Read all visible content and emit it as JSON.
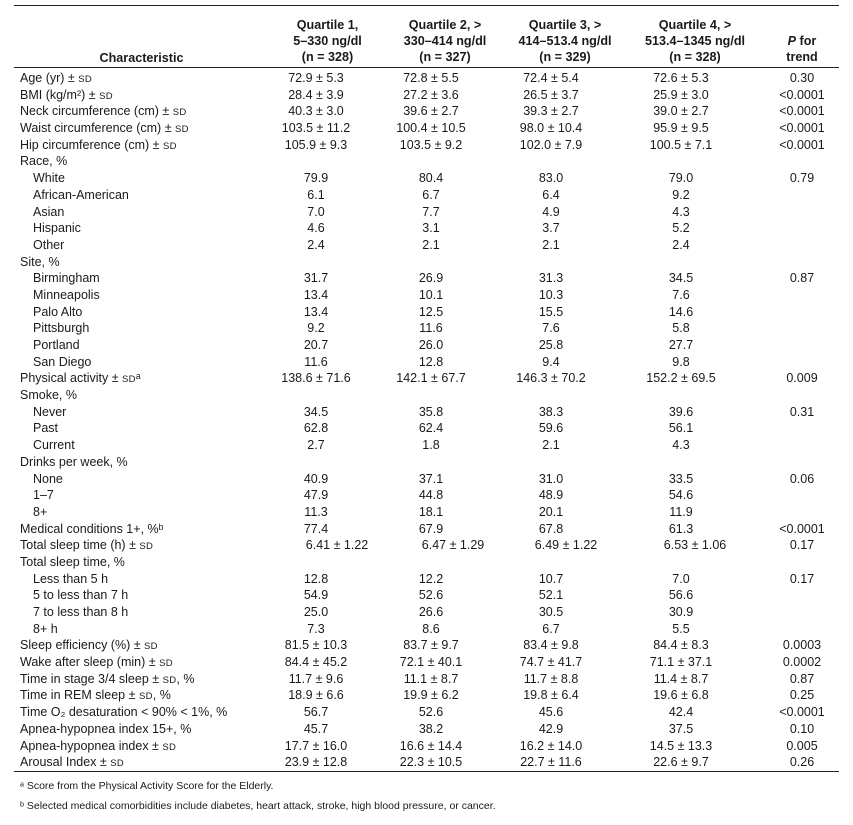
{
  "header": {
    "characteristic": "Characteristic",
    "q1": [
      "Quartile 1,",
      "5–330 ng/dl",
      "(n = 328)"
    ],
    "q2": [
      "Quartile 2, >",
      "330–414 ng/dl",
      "(n = 327)"
    ],
    "q3": [
      "Quartile 3, >",
      "414–513.4 ng/dl",
      "(n = 329)"
    ],
    "q4": [
      "Quartile 4, >",
      "513.4–1345 ng/dl",
      "(n = 328)"
    ],
    "p": [
      "P",
      "for",
      "trend"
    ]
  },
  "rows": [
    {
      "label": "Age (yr) ± SD",
      "v": [
        "72.9 ± 5.3",
        "72.8 ± 5.5",
        "72.4 ± 5.4",
        "72.6 ± 5.3",
        "0.30"
      ]
    },
    {
      "label": "BMI (kg/m²) ± SD",
      "v": [
        "28.4 ± 3.9",
        "27.2 ± 3.6",
        "26.5 ± 3.7",
        "25.9 ± 3.0",
        "<0.0001"
      ]
    },
    {
      "label": "Neck circumference (cm) ± SD",
      "v": [
        "40.3 ± 3.0",
        "39.6 ± 2.7",
        "39.3 ± 2.7",
        "39.0 ± 2.7",
        "<0.0001"
      ]
    },
    {
      "label": "Waist circumference (cm) ± SD",
      "v": [
        "103.5 ± 11.2",
        "100.4 ± 10.5",
        "98.0 ± 10.4",
        "95.9 ± 9.5",
        "<0.0001"
      ]
    },
    {
      "label": "Hip circumference (cm) ± SD",
      "v": [
        "105.9 ± 9.3",
        "103.5 ± 9.2",
        "102.0 ± 7.9",
        "100.5 ± 7.1",
        "<0.0001"
      ]
    },
    {
      "label": "Race, %",
      "v": [
        "",
        "",
        "",
        "",
        ""
      ]
    },
    {
      "label": "White",
      "sub": true,
      "v": [
        "79.9",
        "80.4",
        "83.0",
        "79.0",
        "0.79"
      ]
    },
    {
      "label": "African-American",
      "sub": true,
      "v": [
        "6.1",
        "6.7",
        "6.4",
        "9.2",
        ""
      ]
    },
    {
      "label": "Asian",
      "sub": true,
      "v": [
        "7.0",
        "7.7",
        "4.9",
        "4.3",
        ""
      ]
    },
    {
      "label": "Hispanic",
      "sub": true,
      "v": [
        "4.6",
        "3.1",
        "3.7",
        "5.2",
        ""
      ]
    },
    {
      "label": "Other",
      "sub": true,
      "v": [
        "2.4",
        "2.1",
        "2.1",
        "2.4",
        ""
      ]
    },
    {
      "label": "Site, %",
      "v": [
        "",
        "",
        "",
        "",
        ""
      ]
    },
    {
      "label": "Birmingham",
      "sub": true,
      "v": [
        "31.7",
        "26.9",
        "31.3",
        "34.5",
        "0.87"
      ]
    },
    {
      "label": "Minneapolis",
      "sub": true,
      "v": [
        "13.4",
        "10.1",
        "10.3",
        "7.6",
        ""
      ]
    },
    {
      "label": "Palo Alto",
      "sub": true,
      "v": [
        "13.4",
        "12.5",
        "15.5",
        "14.6",
        ""
      ]
    },
    {
      "label": "Pittsburgh",
      "sub": true,
      "v": [
        "9.2",
        "11.6",
        "7.6",
        "5.8",
        ""
      ]
    },
    {
      "label": "Portland",
      "sub": true,
      "v": [
        "20.7",
        "26.0",
        "25.8",
        "27.7",
        ""
      ]
    },
    {
      "label": "San Diego",
      "sub": true,
      "v": [
        "11.6",
        "12.8",
        "9.4",
        "9.8",
        ""
      ]
    },
    {
      "label": "Physical activity ± SDᵃ",
      "v": [
        "138.6 ± 71.6",
        "142.1 ± 67.7",
        "146.3 ± 70.2",
        "152.2 ± 69.5",
        "0.009"
      ]
    },
    {
      "label": "Smoke, %",
      "v": [
        "",
        "",
        "",
        "",
        ""
      ]
    },
    {
      "label": "Never",
      "sub": true,
      "v": [
        "34.5",
        "35.8",
        "38.3",
        "39.6",
        "0.31"
      ]
    },
    {
      "label": "Past",
      "sub": true,
      "v": [
        "62.8",
        "62.4",
        "59.6",
        "56.1",
        ""
      ]
    },
    {
      "label": "Current",
      "sub": true,
      "v": [
        "2.7",
        "1.8",
        "2.1",
        "4.3",
        ""
      ]
    },
    {
      "label": "Drinks per week, %",
      "v": [
        "",
        "",
        "",
        "",
        ""
      ]
    },
    {
      "label": "None",
      "sub": true,
      "v": [
        "40.9",
        "37.1",
        "31.0",
        "33.5",
        "0.06"
      ]
    },
    {
      "label": "1–7",
      "sub": true,
      "v": [
        "47.9",
        "44.8",
        "48.9",
        "54.6",
        ""
      ]
    },
    {
      "label": "8+",
      "sub": true,
      "v": [
        "11.3",
        "18.1",
        "20.1",
        "11.9",
        ""
      ]
    },
    {
      "label": "Medical conditions 1+, %ᵇ",
      "v": [
        "77.4",
        "67.9",
        "67.8",
        "61.3",
        "<0.0001"
      ]
    },
    {
      "label": "Total sleep time (h) ± SD",
      "pad": true,
      "v": [
        "6.41 ± 1.22",
        "6.47 ± 1.29",
        "6.49 ± 1.22",
        "6.53 ± 1.06",
        "0.17"
      ]
    },
    {
      "label": "Total sleep time, %",
      "v": [
        "",
        "",
        "",
        "",
        ""
      ]
    },
    {
      "label": "Less than 5 h",
      "sub": true,
      "v": [
        "12.8",
        "12.2",
        "10.7",
        "7.0",
        "0.17"
      ]
    },
    {
      "label": "5 to less than 7 h",
      "sub": true,
      "v": [
        "54.9",
        "52.6",
        "52.1",
        "56.6",
        ""
      ]
    },
    {
      "label": "7 to less than 8 h",
      "sub": true,
      "v": [
        "25.0",
        "26.6",
        "30.5",
        "30.9",
        ""
      ]
    },
    {
      "label": "8+ h",
      "sub": true,
      "v": [
        "7.3",
        "8.6",
        "6.7",
        "5.5",
        ""
      ]
    },
    {
      "label": "Sleep efficiency (%) ± SD",
      "v": [
        "81.5 ± 10.3",
        "83.7 ± 9.7",
        "83.4 ± 9.8",
        "84.4 ± 8.3",
        "0.0003"
      ]
    },
    {
      "label": "Wake after sleep (min) ± SD",
      "v": [
        "84.4 ± 45.2",
        "72.1 ± 40.1",
        "74.7 ± 41.7",
        "71.1 ± 37.1",
        "0.0002"
      ]
    },
    {
      "label": "Time in stage 3/4 sleep ± SD, %",
      "v": [
        "11.7 ± 9.6",
        "11.1 ± 8.7",
        "11.7 ± 8.8",
        "11.4 ± 8.7",
        "0.87"
      ]
    },
    {
      "label": "Time in REM sleep ± SD, %",
      "v": [
        "18.9 ± 6.6",
        "19.9 ± 6.2",
        "19.8 ± 6.4",
        "19.6 ± 6.8",
        "0.25"
      ]
    },
    {
      "label": "Time O₂ desaturation < 90% < 1%, %",
      "v": [
        "56.7",
        "52.6",
        "45.6",
        "42.4",
        "<0.0001"
      ]
    },
    {
      "label": "Apnea-hypopnea index 15+, %",
      "v": [
        "45.7",
        "38.2",
        "42.9",
        "37.5",
        "0.10"
      ]
    },
    {
      "label": "Apnea-hypopnea index ± SD",
      "v": [
        "17.7 ± 16.0",
        "16.6 ± 14.4",
        "16.2 ± 14.0",
        "14.5 ± 13.3",
        "0.005"
      ]
    },
    {
      "label": "Arousal Index ± SD",
      "v": [
        "23.9 ± 12.8",
        "22.3 ± 10.5",
        "22.7 ± 11.6",
        "22.6 ± 9.7",
        "0.26"
      ]
    }
  ],
  "footnotes": {
    "a": "ᵃ Score from the Physical Activity Score for the Elderly.",
    "b": "ᵇ Selected medical comorbidities include diabetes, heart attack, stroke, high blood pressure, or cancer."
  }
}
